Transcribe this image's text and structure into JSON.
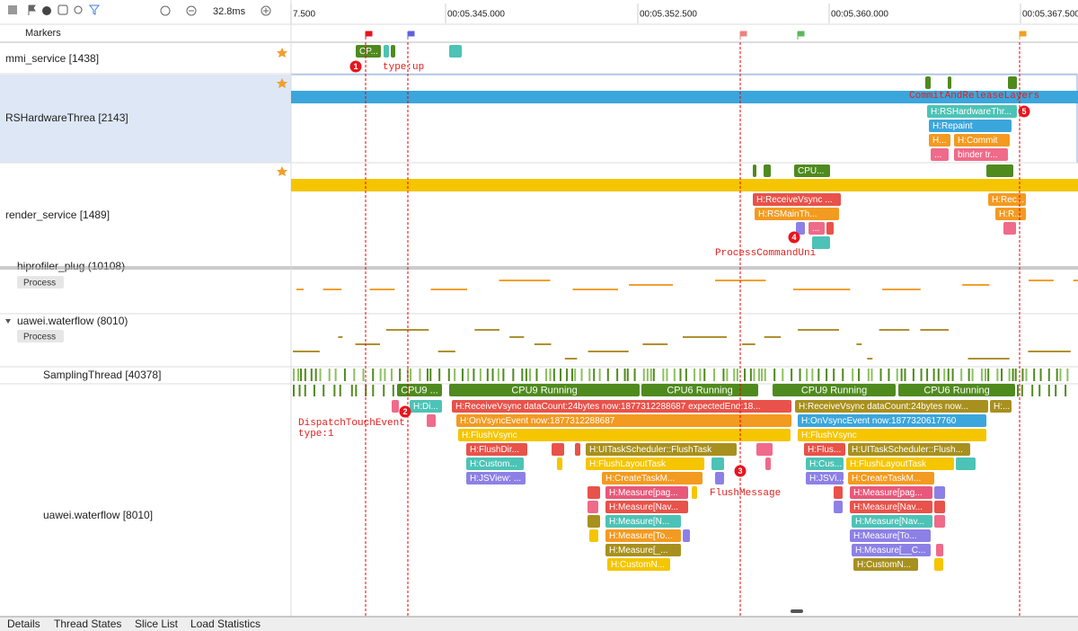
{
  "toolbar": {
    "zoom": "32.8ms"
  },
  "ruler": {
    "ticks": [
      "7.500",
      "00:05.345.000",
      "00:05.352.500",
      "00:05.360.000",
      "00:05.367.500"
    ]
  },
  "markers_label": "Markers",
  "rows": {
    "mmi": {
      "name": "mmi_service [1438]",
      "slices": [
        "CP..."
      ],
      "notes": [
        {
          "number": "1",
          "lines": [
            "type:up"
          ]
        }
      ]
    },
    "rs": {
      "name": "RSHardwareThrea [2143]",
      "slices": [
        "H:RSHardwareThr...",
        "H:Repaint",
        "H...",
        "H:Commit",
        "...",
        "binder tr..."
      ],
      "notes": [
        {
          "number": "5",
          "lines": [
            "CommitAndReleaseLayers"
          ]
        }
      ]
    },
    "render": {
      "name": "render_service [1489]",
      "slices": [
        "CPU...",
        "H:ReceiveVsync ...",
        "H:RSMainTh...",
        "...",
        "H:Rec...",
        "H:R..."
      ],
      "notes": [
        {
          "number": "4",
          "lines": [
            "ProcessCommandUni"
          ]
        }
      ]
    },
    "hiprofiler": {
      "name": "hiprofiler_plug (10108)",
      "tag": "Process"
    },
    "process": {
      "name": "uawei.waterflow (8010)",
      "tag": "Process"
    },
    "sampling": {
      "name": "SamplingThread [40378]"
    },
    "main": {
      "name": "uawei.waterflow [8010]",
      "states": [
        "CPU9 ...",
        "CPU9 Running",
        "CPU6 Running",
        "CPU9 Running",
        "CPU6 Running"
      ],
      "slices": [
        "H:Di...",
        "H:ReceiveVsync dataCount:24bytes now:1877312288687 expectedEnd:18...",
        "H:OnVsyncEvent now:1877312288687",
        "H:FlushVsync",
        "H:FlushDir...",
        "H:UITaskScheduler::FlushTask",
        "H:Custom...",
        "H:FlushLayoutTask",
        "H:JSView: ...",
        "H:CreateTaskM...",
        "H:Measure[pag...",
        "H:Measure[Nav...",
        "H:Measure[N...",
        "H:Measure[To...",
        "H:Measure[_...",
        "H:CustomN...",
        "H:ReceiveVsync dataCount:24bytes now...",
        "H:...",
        "H:OnVsyncEvent now:1877320617760",
        "H:FlushVsync",
        "H:Flus...",
        "H:UITaskScheduler::Flush...",
        "H:Cus...",
        "H:FlushLayoutTask",
        "H:JSVi...",
        "H:CreateTaskM...",
        "H:Measure[pag...",
        "H:Measure[Nav...",
        "H:Measure[Nav...",
        "H:Measure[To...",
        "H:Measure[__C...",
        "H:CustomN..."
      ],
      "notes": [
        {
          "number": "2",
          "lines": [
            "DispatchTouchEvent",
            "type:1"
          ]
        },
        {
          "number": "3",
          "lines": [
            "FlushMessage"
          ]
        }
      ]
    }
  },
  "tabs": [
    "Details",
    "Thread States",
    "Slice List",
    "Load Statistics"
  ]
}
